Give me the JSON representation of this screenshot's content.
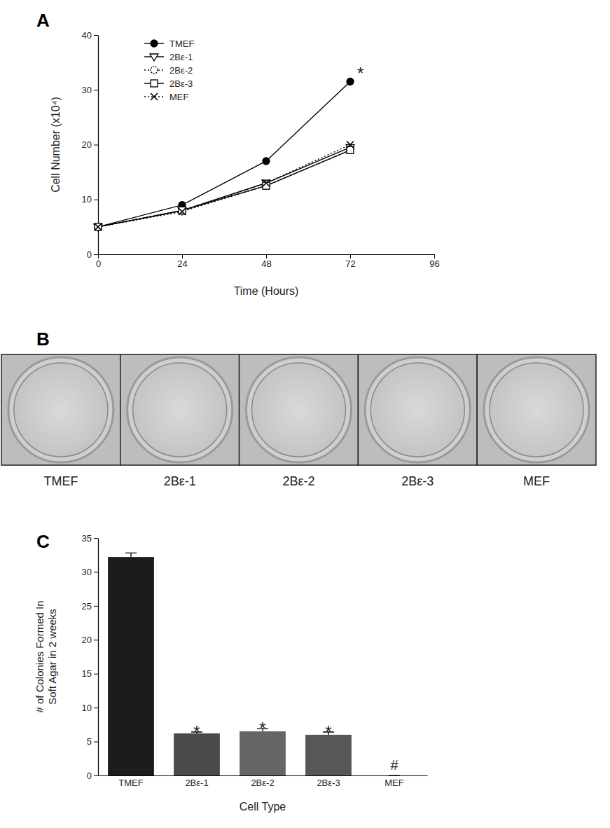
{
  "chart_data": [
    {
      "type": "line",
      "title": "A",
      "x_label": "Time (Hours)",
      "y_label": [
        "Cell Number (x10⁴)"
      ],
      "x": [
        0,
        24,
        48,
        72
      ],
      "xlim": [
        0,
        96
      ],
      "xticks": [
        0,
        24,
        48,
        72,
        96
      ],
      "ylim": [
        0,
        40
      ],
      "yticks": [
        0,
        10,
        20,
        30,
        40
      ],
      "grid": false,
      "legend": "upper left",
      "series": [
        {
          "name": "TMEF",
          "color": "#000000",
          "marker": "circle",
          "line_style": "solid",
          "values": [
            5,
            9,
            17,
            31.5
          ]
        },
        {
          "name": "2Bε-1",
          "color": "#000000",
          "marker": "triangle-down",
          "line_style": "solid",
          "values": [
            5,
            8,
            13,
            19.5
          ]
        },
        {
          "name": "2Bε-2",
          "color": "#000000",
          "marker": "circle-open",
          "line_style": "dotted",
          "values": [
            5,
            7.8,
            12.5,
            19
          ]
        },
        {
          "name": "2Bε-3",
          "color": "#000000",
          "marker": "square-open",
          "line_style": "solid",
          "values": [
            5,
            8,
            12.5,
            19
          ]
        },
        {
          "name": "MEF",
          "color": "#000000",
          "marker": "x",
          "line_style": "dotted",
          "values": [
            5,
            7.8,
            13,
            20
          ]
        }
      ],
      "annotations": [
        {
          "text": "*",
          "x": 72,
          "y": 31.5
        }
      ]
    },
    {
      "type": "bar",
      "title": "C",
      "x_label": "Cell Type",
      "y_label": [
        "# of Colonies Formed In",
        "Soft Agar in 2 weeks"
      ],
      "categories": [
        "TMEF",
        "2Bε-1",
        "2Bε-2",
        "2Bε-3",
        "MEF"
      ],
      "values": [
        32.2,
        6.2,
        6.5,
        6.0,
        0
      ],
      "errors": [
        0.6,
        0.2,
        0.4,
        0.4,
        0
      ],
      "colors": [
        "#1c1c1c",
        "#4a4a4a",
        "#666666",
        "#575757",
        "#808080"
      ],
      "ylim": [
        0,
        35
      ],
      "yticks": [
        0,
        5,
        10,
        15,
        20,
        25,
        30,
        35
      ],
      "grid": false,
      "annotations": [
        null,
        "*",
        "*",
        "*",
        "#"
      ]
    }
  ],
  "image_panel": {
    "title": "B",
    "labels": [
      "TMEF",
      "2Bε-1",
      "2Bε-2",
      "2Bε-3",
      "MEF"
    ]
  }
}
